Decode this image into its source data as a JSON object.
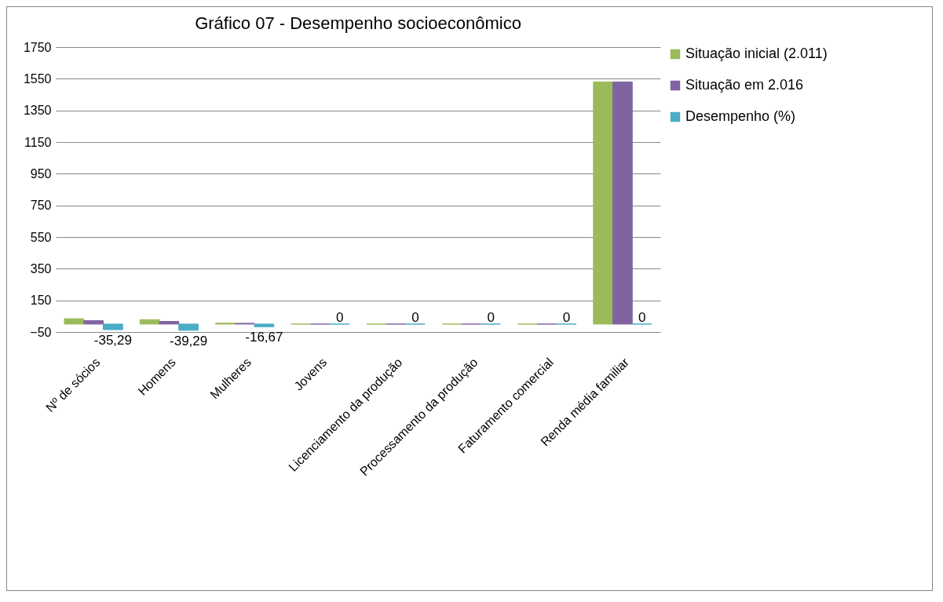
{
  "chart_data": {
    "type": "bar",
    "title": "Gráfico 07 - Desempenho socioeconômico",
    "categories": [
      "Nº de sócios",
      "Homens",
      "Mulheres",
      "Jovens",
      "Licenciamento da produção",
      "Processamento da produção",
      "Faturamento comercial",
      "Renda média familiar"
    ],
    "series": [
      {
        "name": "Situação inicial (2.011)",
        "color": "#9bbb59",
        "values": [
          34,
          28,
          6,
          0,
          0,
          0,
          0,
          1530
        ]
      },
      {
        "name": "Situação em 2.016",
        "color": "#8064a2",
        "values": [
          22,
          17,
          5,
          0,
          0,
          0,
          0,
          1530
        ]
      },
      {
        "name": "Desempenho (%)",
        "color": "#4bacc6",
        "values": [
          -35.29,
          -39.29,
          -16.67,
          0,
          0,
          0,
          0,
          0
        ],
        "value_labels": [
          "-35,29",
          "-39,29",
          "-16,67",
          "0",
          "0",
          "0",
          "0",
          "0"
        ]
      }
    ],
    "ylim": [
      -50,
      1750
    ],
    "yticks": [
      -50,
      150,
      350,
      550,
      750,
      950,
      1150,
      1350,
      1550,
      1750
    ],
    "grid": "y",
    "legend": "right"
  }
}
